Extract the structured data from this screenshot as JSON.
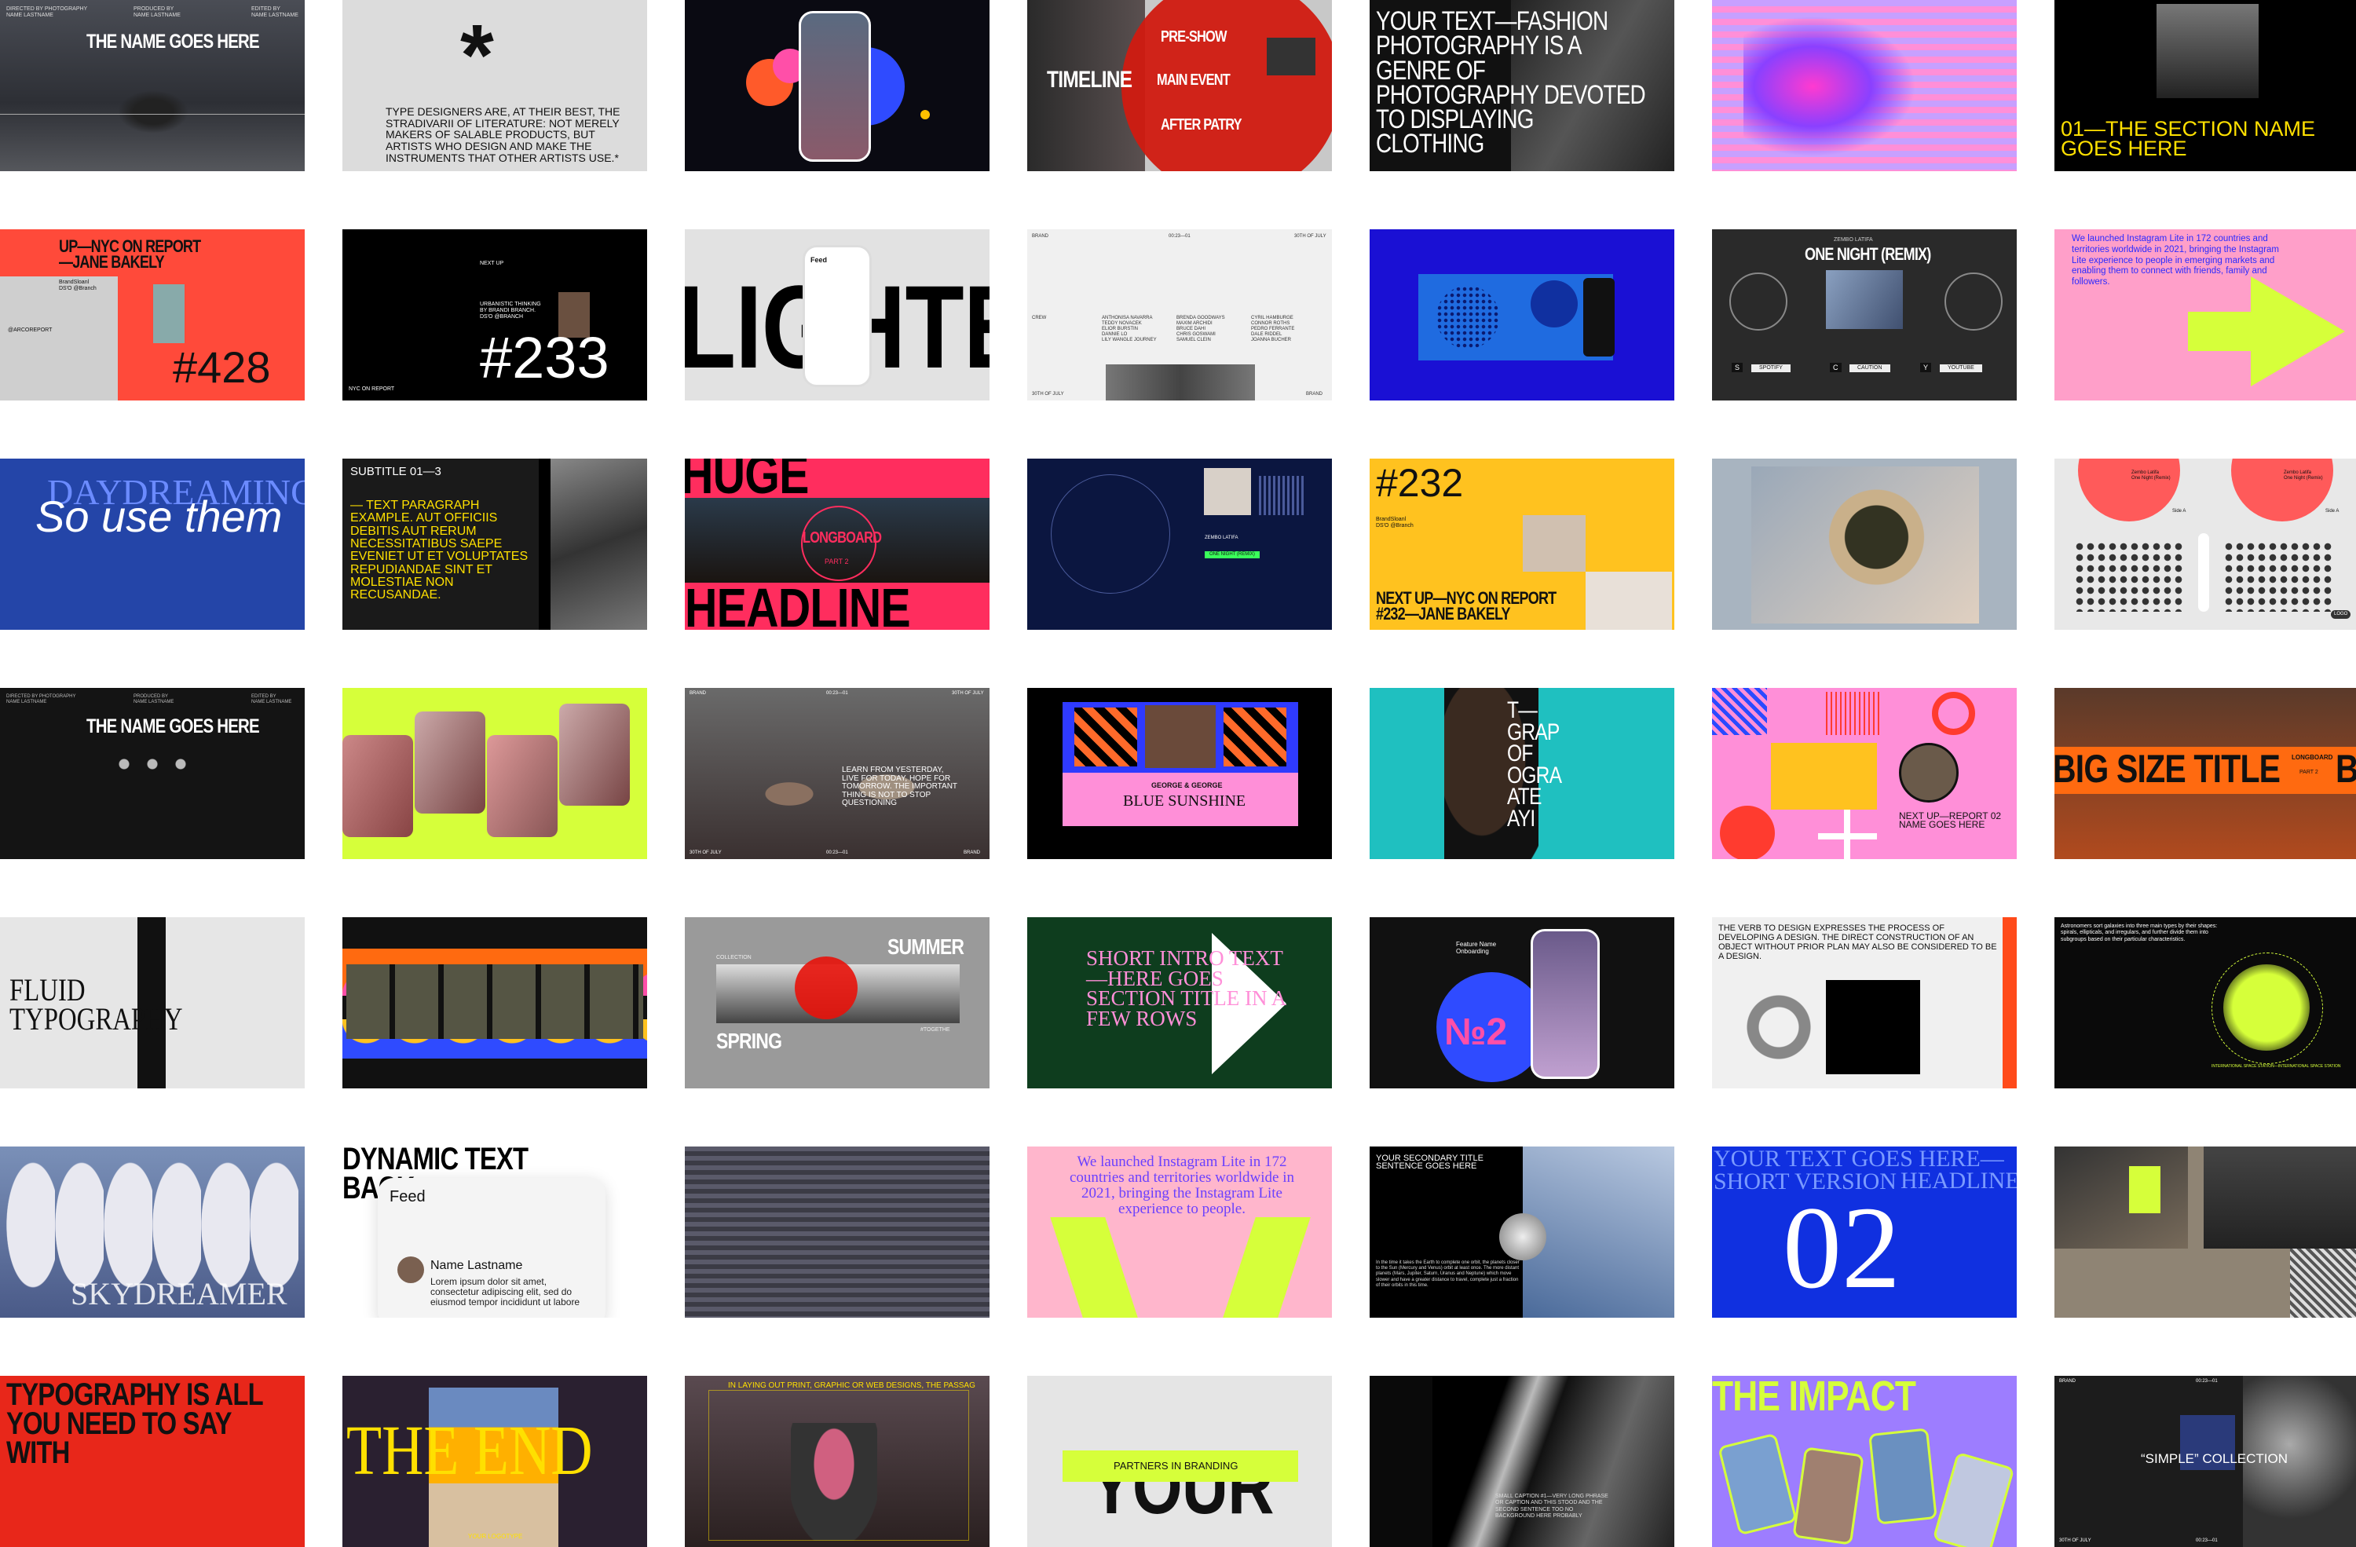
{
  "grid": {
    "columns": 7,
    "rows": 7
  },
  "tiles": [
    {
      "id": "r1c1",
      "bg": "#3d3f45",
      "texts": [
        "THE NAME GOES HERE"
      ],
      "small": [
        "DIRECTED BY PHOTOGRAPHY\nNAME LASTNAME",
        "PRODUCED BY\nNAME LASTNAME",
        "EDITED BY\nNAME LASTNAME"
      ]
    },
    {
      "id": "r1c2",
      "bg": "#dcdcdc",
      "texts": [
        "*",
        "TYPE DESIGNERS ARE, AT THEIR BEST, THE STRADIVARII OF LITERATURE: NOT MERELY MAKERS OF SALABLE PRODUCTS, BUT ARTISTS WHO DESIGN AND MAKE THE INSTRUMENTS THAT OTHER ARTISTS USE.*"
      ]
    },
    {
      "id": "r1c3",
      "bg": "#0a0a12",
      "texts": []
    },
    {
      "id": "r1c4",
      "bg": "#c8c8c8",
      "texts": [
        "TIMELINE",
        "PRE-SHOW",
        "MAIN EVENT",
        "AFTER PATRY"
      ]
    },
    {
      "id": "r1c5",
      "bg": "#111111",
      "texts": [
        "YOUR TEXT—FASHION PHOTOGRAPHY IS A GENRE OF PHOTOGRAPHY DEVOTED TO DISPLAYING CLOTHING"
      ]
    },
    {
      "id": "r1c6",
      "bg": "#b58ad8",
      "texts": []
    },
    {
      "id": "r1c7",
      "bg": "#000000",
      "texts": [
        "01—THE SECTION NAME GOES HERE"
      ]
    },
    {
      "id": "r2c1",
      "bg": "#ff4a3a",
      "texts": [
        "UP—NYC ON REPORT\n—JANE BAKELY",
        "#428"
      ],
      "small": [
        "BrandSloanl\nDS'O @Branch",
        "@ARCOREPORT"
      ]
    },
    {
      "id": "r2c2",
      "bg": "#000000",
      "texts": [
        "#233"
      ],
      "small": [
        "NEXT UP",
        "URBANISTIC THINKING\nBY BRANDI BRANCH.\nDS'O @BRANCH",
        "NYC ON REPORT"
      ]
    },
    {
      "id": "r2c3",
      "bg": "#e2e2e2",
      "texts": [
        "LIGHTE"
      ],
      "small": [
        "Feed"
      ]
    },
    {
      "id": "r2c4",
      "bg": "#f0f0f0",
      "texts": [],
      "small": [
        "BRAND",
        "00:23—01",
        "30TH OF JULY",
        "CREW",
        "ANTHONISA NAVARRA\nTEDDY NOVACEK\nELIOR BURSTIN\nDANNIE LO\nLILY WANGLE JOURNEY",
        "BRENDA GOODWAYS\nMAXIM ARCHIDI\nBRUCE DAHI\nCHRIS GOSWAMI\nSAMUEL CLEIN",
        "CYRIL HAMBURGE\nCONNOR ROTHS\nPEDRO FERRANTE\nDALE RIDDEL\nJOANNA BUCHER",
        "30TH OF JULY",
        "BRAND"
      ]
    },
    {
      "id": "r2c5",
      "bg": "#1a10d4",
      "texts": []
    },
    {
      "id": "r2c6",
      "bg": "#2a2a2a",
      "texts": [
        "ONE NIGHT (REMIX)"
      ],
      "small": [
        "ZEMBO LATIFA",
        "SPOTIFY",
        "CAUTION",
        "YOUTUBE",
        "S",
        "C",
        "Y"
      ]
    },
    {
      "id": "r2c7",
      "bg": "#ff9fc9",
      "texts": [
        "We launched Instagram Lite in 172 countries and territories worldwide in 2021, bringing the Instagram Lite experience to people in emerging markets and enabling them to connect with friends, family and followers."
      ]
    },
    {
      "id": "r3c1",
      "bg": "#2445a8",
      "texts": [
        "DAYDREAMING",
        "So use them"
      ]
    },
    {
      "id": "r3c2",
      "bg": "#1a1a1a",
      "texts": [
        "SUBTITLE 01—3",
        "— TEXT PARAGRAPH EXAMPLE. AUT OFFICIIS DEBITIS AUT RERUM NECESSITATIBUS SAEPE EVENIET UT ET VOLUPTATES REPUDIANDAE SINT ET MOLESTIAE NON RECUSANDAE."
      ]
    },
    {
      "id": "r3c3",
      "bg": "#ff2d5e",
      "texts": [
        "HUGE HEAD",
        "HEADLINE",
        "LONGBOARD",
        "PART 2"
      ]
    },
    {
      "id": "r3c4",
      "bg": "#0b1640",
      "texts": [],
      "small": [
        "ZEMBO LATIFA",
        "ONE NIGHT (REMIX)"
      ]
    },
    {
      "id": "r3c5",
      "bg": "#ffc21f",
      "texts": [
        "#232",
        "NEXT UP—NYC ON REPORT\n#232—JANE BAKELY"
      ],
      "small": [
        "BrandSloanl\nDS'O @Branch"
      ]
    },
    {
      "id": "r3c6",
      "bg": "#a8b4c0",
      "texts": []
    },
    {
      "id": "r3c7",
      "bg": "#e8e8e8",
      "texts": [],
      "small": [
        "Zembo Latifa\nOne Night (Remix)",
        "Zembo Latifa\nOne Night (Remix)",
        "Side A",
        "Side A",
        "LOGO"
      ]
    },
    {
      "id": "r4c1",
      "bg": "#141414",
      "texts": [
        "THE NAME GOES HERE"
      ],
      "small": [
        "DIRECTED BY PHOTOGRAPHY\nNAME LASTNAME",
        "PRODUCED BY\nNAME LASTNAME",
        "EDITED BY\nNAME LASTNAME"
      ]
    },
    {
      "id": "r4c2",
      "bg": "#d6ff3a",
      "texts": []
    },
    {
      "id": "r4c3",
      "bg": "#5a5a5a",
      "texts": [
        "LEARN FROM YESTERDAY, LIVE FOR TODAY, HOPE FOR TOMORROW. THE IMPORTANT THING IS NOT TO STOP QUESTIONING"
      ],
      "small": [
        "BRAND",
        "00:23—01",
        "30TH OF JULY",
        "30TH OF JULY",
        "00:23—01",
        "BRAND"
      ]
    },
    {
      "id": "r4c4",
      "bg": "#000000",
      "texts": [
        "GEORGE & GEORGE",
        "BLUE SUNSHINE"
      ]
    },
    {
      "id": "r4c5",
      "bg": "#1fc0c0",
      "texts": [
        "T—\nGRAP\nOF\nOGRA\nATE\nAYI"
      ]
    },
    {
      "id": "r4c6",
      "bg": "#ff8fd8",
      "texts": [
        "NEXT UP—REPORT 02\nNAME GOES HERE"
      ]
    },
    {
      "id": "r4c7",
      "bg": "#b14a1e",
      "texts": [
        "BIG SIZE TITLE",
        "BI"
      ],
      "small": [
        "LONGBOARD",
        "PART 2"
      ]
    },
    {
      "id": "r5c1",
      "bg": "#e6e6e6",
      "texts": [
        "FLUID TYPOGRAPHY"
      ]
    },
    {
      "id": "r5c2",
      "bg": "#111111",
      "texts": []
    },
    {
      "id": "r5c3",
      "bg": "#9a9a9a",
      "texts": [
        "SUMMER",
        "SPRING"
      ],
      "small": [
        "COLLECTION",
        "#TOGETHE"
      ]
    },
    {
      "id": "r5c4",
      "bg": "#0e3d1e",
      "texts": [
        "SHORT INTRO TEXT—HERE GOES SECTION TITLE IN A FEW ROWS"
      ]
    },
    {
      "id": "r5c5",
      "bg": "#111111",
      "texts": [
        "№2"
      ],
      "small": [
        "Feature Name\nOnboarding"
      ]
    },
    {
      "id": "r5c6",
      "bg": "#f0f0f0",
      "texts": [
        "THE VERB TO DESIGN EXPRESSES THE PROCESS OF DEVELOPING A DESIGN. THE DIRECT CONSTRUCTION OF AN OBJECT WITHOUT PRIOR PLAN MAY ALSO BE CONSIDERED TO BE A DESIGN."
      ]
    },
    {
      "id": "r5c7",
      "bg": "#0a0a0a",
      "texts": [
        "Astronomers sort galaxies into three main types by their shapes: spirals, ellipticals, and irregulars, and further divide them into subgroups based on their particular characteristics."
      ],
      "small": [
        "INTERNATIONAL SPACE STATION—INTERNATIONAL SPACE STATION"
      ]
    },
    {
      "id": "r6c1",
      "bg": "#6a7fa8",
      "texts": [
        "SKYDREAMER"
      ]
    },
    {
      "id": "r6c2",
      "bg": "#ffffff",
      "texts": [
        "DYNAMIC TEXT BACK",
        "Feed",
        "Name Lastname",
        "Lorem ipsum dolor sit amet, consectetur adipiscing elit, sed do eiusmod tempor incididunt ut labore"
      ]
    },
    {
      "id": "r6c3",
      "bg": "#3a3a48",
      "texts": []
    },
    {
      "id": "r6c4",
      "bg": "#ffb6cc",
      "texts": [
        "We launched Instagram Lite in 172 countries and territories worldwide in 2021, bringing the Instagram Lite experience to people."
      ]
    },
    {
      "id": "r6c5",
      "bg": "#000000",
      "texts": [
        "YOUR SECONDARY TITLE SENTENCE GOES HERE",
        "In the time it takes the Earth to complete one orbit, the planets closer to the Sun (Mercury and Venus) orbit at least once. The more distant planets (Mars, Jupiter, Saturn, Uranus and Neptune) which move slower and have a greater distance to travel, complete just a fraction of their orbits in this time."
      ]
    },
    {
      "id": "r6c6",
      "bg": "#1030e0",
      "texts": [
        "YOUR TEXT GOES HERE—SHORT VERSION",
        "HEADLINE",
        "02"
      ]
    },
    {
      "id": "r6c7",
      "bg": "#8f8474",
      "texts": []
    },
    {
      "id": "r7c1",
      "bg": "#e8271a",
      "texts": [
        "TYPOGRAPHY IS ALL YOU NEED TO SAY WITH"
      ]
    },
    {
      "id": "r7c2",
      "bg": "#2a2030",
      "texts": [
        "THE END",
        "YOUR LOGOTYPE"
      ]
    },
    {
      "id": "r7c3",
      "bg": "#3a2a2a",
      "texts": [
        "IN LAYING OUT PRINT, GRAPHIC OR WEB DESIGNS, THE PASSAG"
      ]
    },
    {
      "id": "r7c4",
      "bg": "#e5e5e5",
      "texts": [
        "YOUR",
        "PARTNERS IN BRANDING"
      ]
    },
    {
      "id": "r7c5",
      "bg": "#0a0a0a",
      "texts": [
        "SMALL CAPTION #1—VERY LONG PHRASE OR CAPTION AND THIS STOOD AND THE SECOND SENTENCE TOO NO BACKGROUND HERE PROBABLY"
      ]
    },
    {
      "id": "r7c6",
      "bg": "#9d7dff",
      "texts": [
        "THE IMPACT"
      ]
    },
    {
      "id": "r7c7",
      "bg": "#1c1c1c",
      "texts": [
        "“SIMPLE” COLLECTION"
      ],
      "small": [
        "BRAND",
        "00:23—01",
        "30TH OF JULY",
        "00:23—01"
      ]
    }
  ],
  "colors": {
    "accent_lime": "#d6ff3a",
    "accent_yellow": "#ffe000",
    "accent_red": "#ff3b2f",
    "accent_blue": "#1030e0",
    "accent_pink": "#ff8fd8"
  }
}
